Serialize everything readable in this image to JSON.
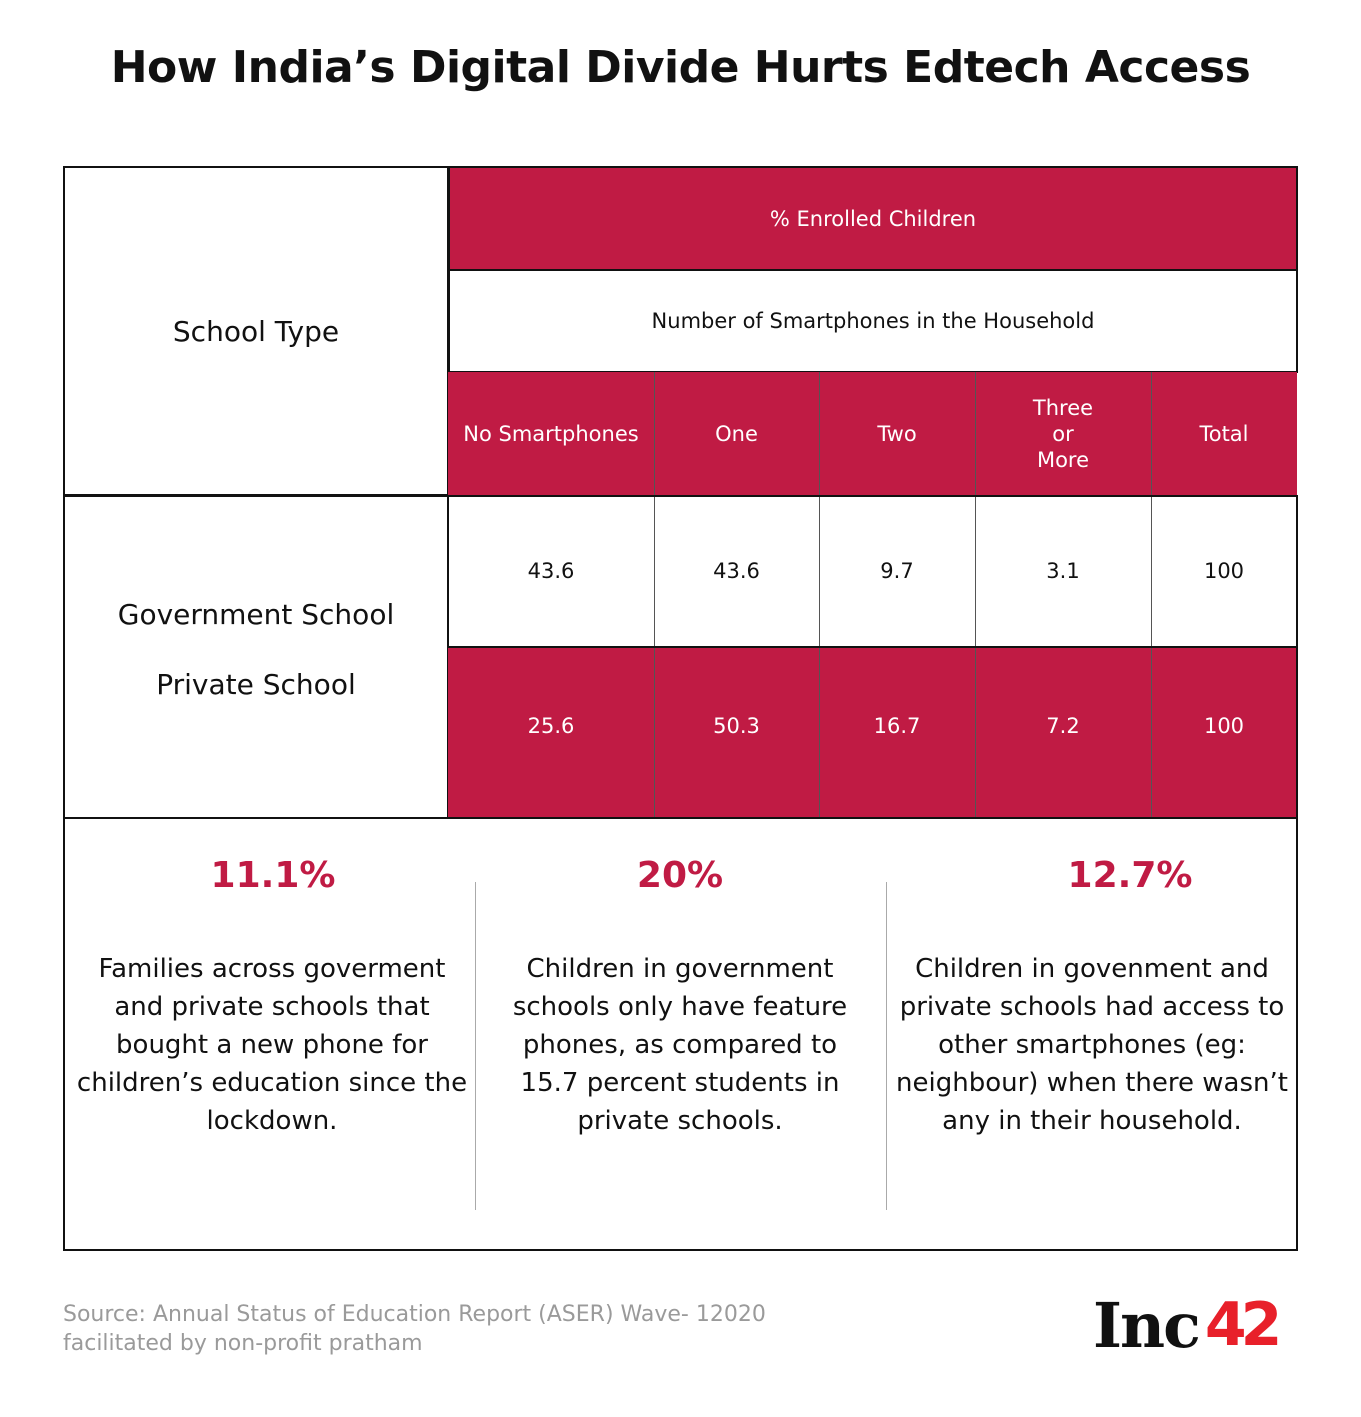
{
  "title": "How India’s Digital Divide Hurts Edtech Access",
  "chart_data": {
    "type": "table",
    "row_header": "School Type",
    "group_header": "% Enrolled Children",
    "sub_header": "Number of Smartphones in the Household",
    "columns": [
      "No Smartphones",
      "One",
      "Two",
      "Three or More",
      "Total"
    ],
    "rows": [
      {
        "label": "Government School",
        "values": [
          "43.6",
          "43.6",
          "9.7",
          "3.1",
          "100"
        ]
      },
      {
        "label": "Private School",
        "values": [
          "25.6",
          "50.3",
          "16.7",
          "7.2",
          "100"
        ]
      }
    ]
  },
  "stats": [
    {
      "value": "11.1%",
      "text": "Families across goverment and private schools that bought a new phone for children’s education since the lockdown."
    },
    {
      "value": "20%",
      "text": "Children in government schools only have feature phones, as compared to 15.7 percent students in private schools."
    },
    {
      "value": "12.7%",
      "text": "Children in govenment and private schools had access to other smartphones (eg: neighbour) when there wasn’t any in their household."
    }
  ],
  "source": "Source: Annual Status of Education Report (ASER) Wave- 12020 facilitated by non-profit pratham",
  "logo": {
    "text": "Inc",
    "number": "42"
  },
  "colors": {
    "accent": "#C01B44",
    "logo_red": "#E8202A"
  }
}
